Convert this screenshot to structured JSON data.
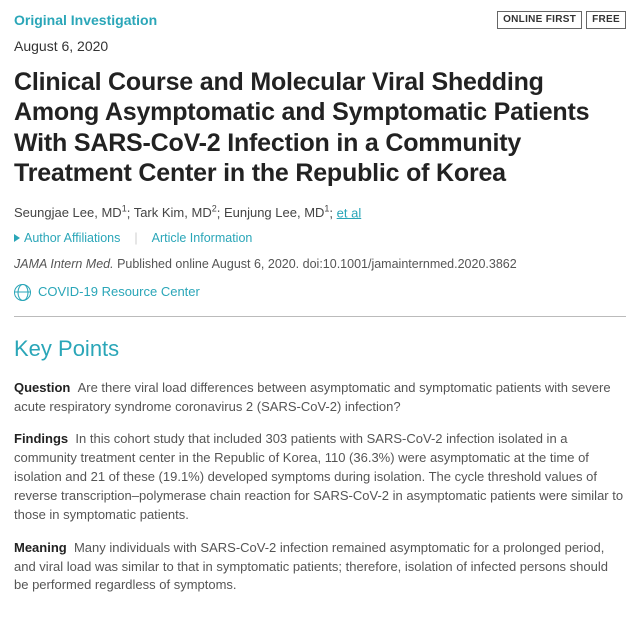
{
  "header": {
    "article_type": "Original Investigation",
    "badges": [
      "ONLINE FIRST",
      "FREE"
    ],
    "date": "August 6, 2020",
    "title": "Clinical Course and Molecular Viral Shedding Among Asymptomatic and Symptomatic Patients With SARS-CoV-2 Infection in a Community Treatment Center in the Republic of Korea"
  },
  "authors": {
    "list": [
      {
        "name": "Seungjae Lee, MD",
        "aff": "1"
      },
      {
        "name": "Tark Kim, MD",
        "aff": "2"
      },
      {
        "name": "Eunjung Lee, MD",
        "aff": "1"
      }
    ],
    "etal": "et al",
    "expand_affiliations": "Author Affiliations",
    "expand_info": "Article Information"
  },
  "citation": {
    "journal": "JAMA Intern Med.",
    "pub": "Published online August 6, 2020.",
    "doi": "doi:10.1001/jamainternmed.2020.3862"
  },
  "resource_link": "COVID-19 Resource Center",
  "key_points": {
    "heading": "Key Points",
    "items": [
      {
        "label": "Question",
        "text": "Are there viral load differences between asymptomatic and symptomatic patients with severe acute respiratory syndrome coronavirus 2 (SARS-CoV-2) infection?"
      },
      {
        "label": "Findings",
        "text": "In this cohort study that included 303 patients with SARS-CoV-2 infection isolated in a community treatment center in the Republic of Korea, 110 (36.3%) were asymptomatic at the time of isolation and 21 of these (19.1%) developed symptoms during isolation. The cycle threshold values of reverse transcription–polymerase chain reaction for SARS-CoV-2 in asymptomatic patients were similar to those in symptomatic patients."
      },
      {
        "label": "Meaning",
        "text": "Many individuals with SARS-CoV-2 infection remained asymptomatic for a prolonged period, and viral load was similar to that in symptomatic patients; therefore, isolation of infected persons should be performed regardless of symptoms."
      }
    ]
  },
  "colors": {
    "accent": "#2aa6b8",
    "text": "#333333",
    "muted": "#555555"
  }
}
